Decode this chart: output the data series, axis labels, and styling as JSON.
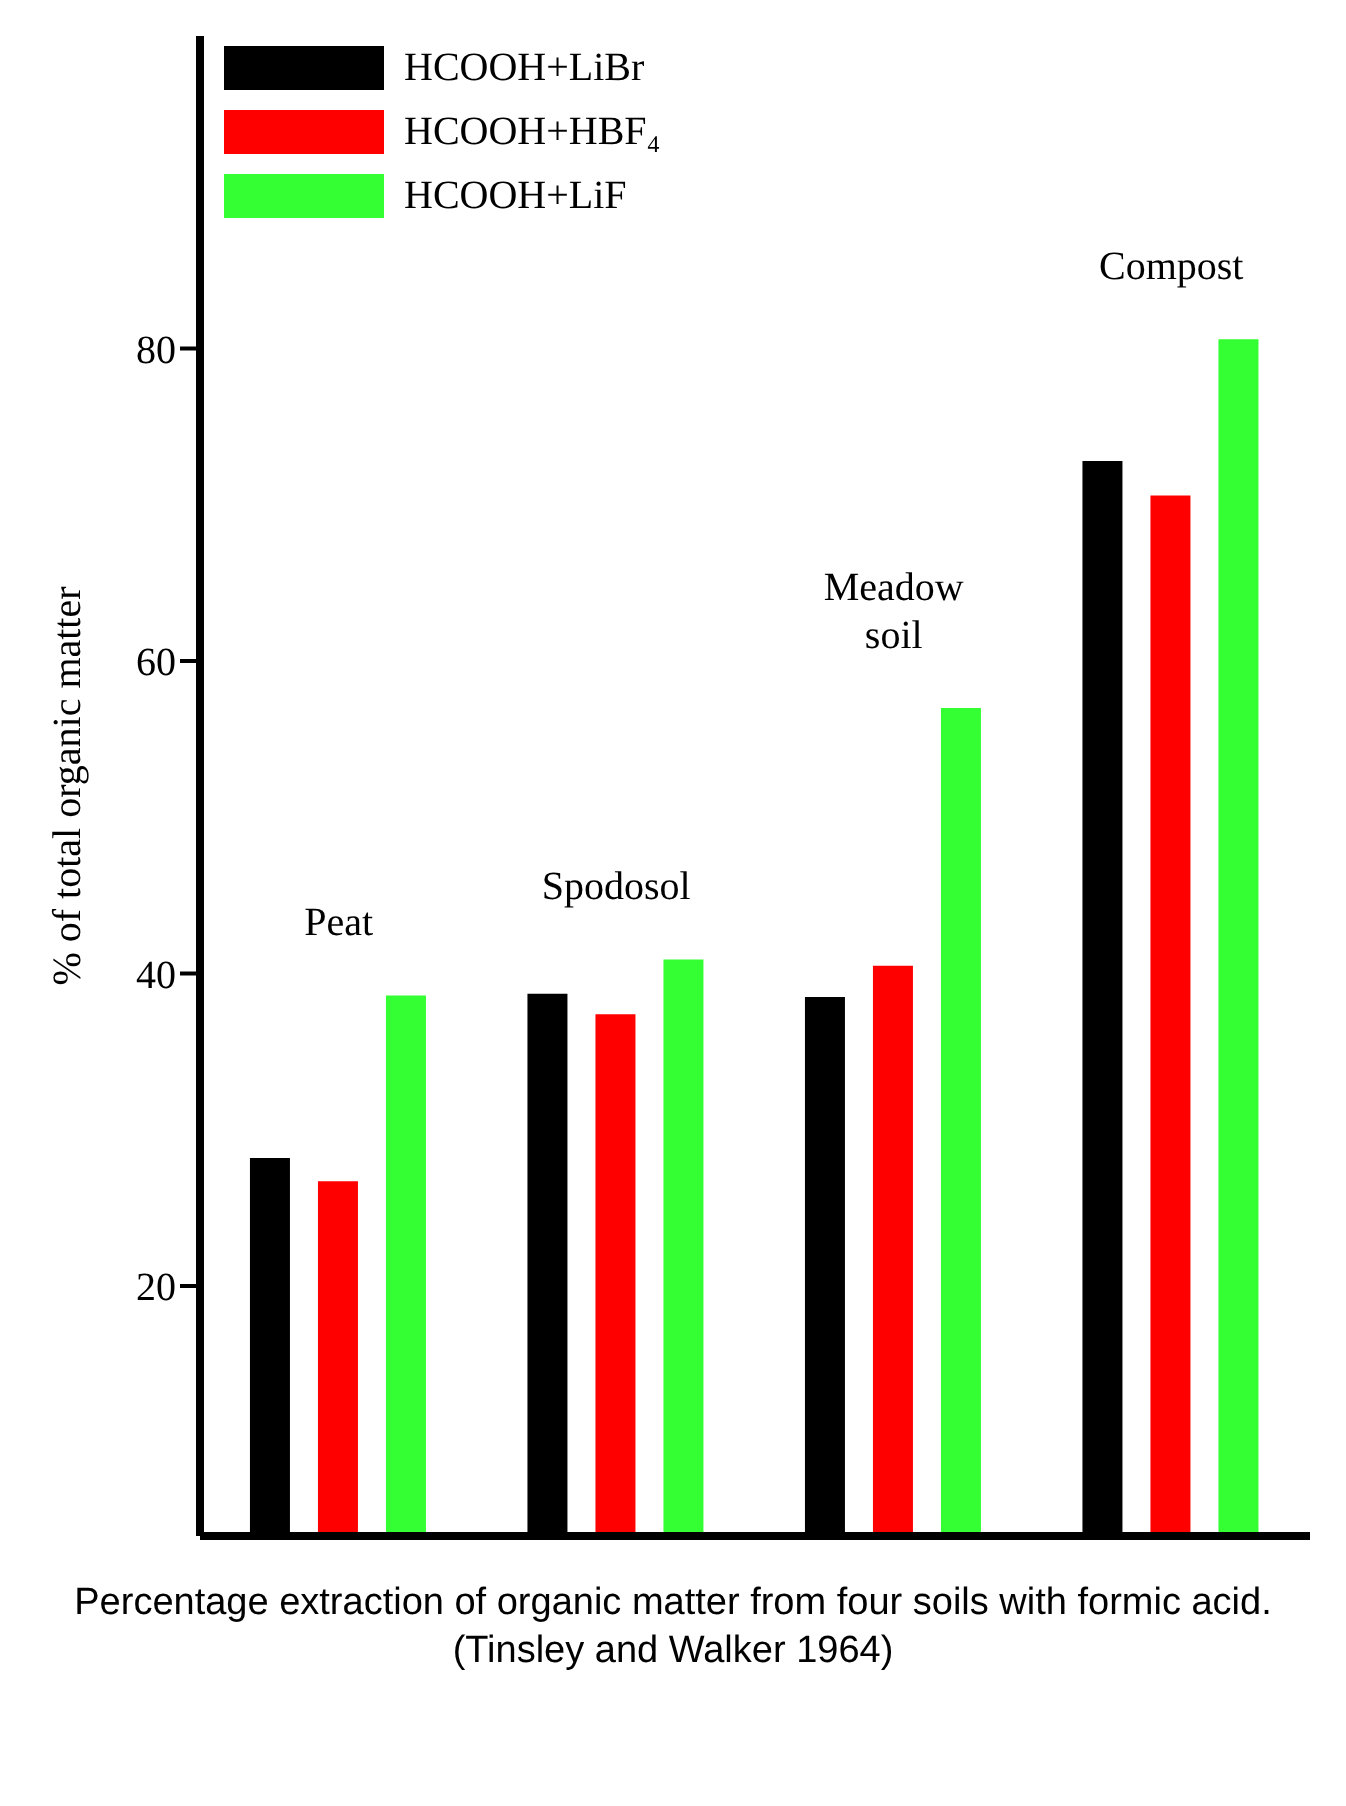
{
  "chart_data": {
    "type": "bar",
    "ylabel": "% of total organic matter",
    "categories": [
      "Peat",
      "Spodosol",
      "Meadow soil",
      "Compost"
    ],
    "series": [
      {
        "name": "HCOOH+LiBr",
        "color": "#000000",
        "values": [
          28.2,
          38.7,
          38.5,
          72.8
        ]
      },
      {
        "name": "HCOOH+HBF₄",
        "color": "#ff0000",
        "values": [
          26.7,
          37.4,
          40.5,
          70.6
        ]
      },
      {
        "name": "HCOOH+LiF",
        "color": "#33ff33",
        "values": [
          38.6,
          40.9,
          57,
          80.6
        ]
      }
    ],
    "ylim": [
      4,
      100
    ],
    "yticks": [
      20,
      40,
      60,
      80
    ],
    "grid": false,
    "legend": "top left",
    "annotations": [
      "Percentage extraction of organic matter from four soils with formic acid.",
      "(Tinsley and Walker 1964)"
    ]
  }
}
